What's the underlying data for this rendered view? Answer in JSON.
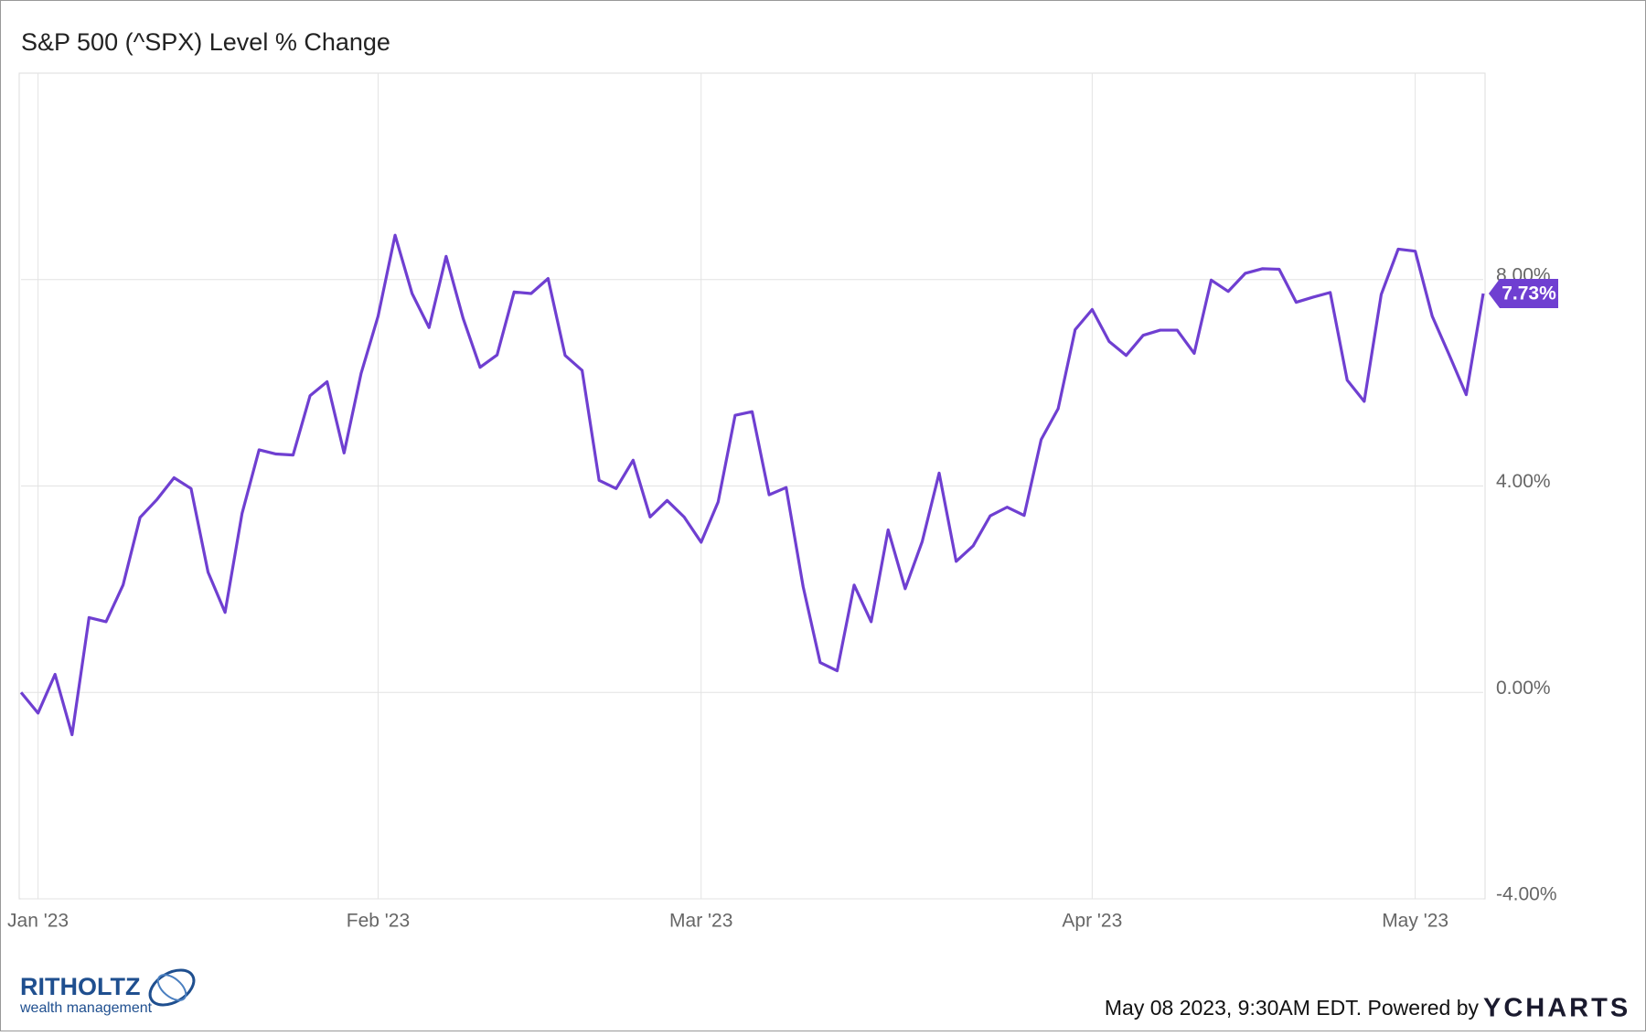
{
  "chart_data": {
    "type": "line",
    "title": "S&P 500 (^SPX) Level % Change",
    "categories": [
      null,
      "Jan '23",
      null,
      null,
      null,
      null,
      null,
      null,
      null,
      null,
      null,
      null,
      null,
      null,
      null,
      null,
      null,
      null,
      null,
      null,
      null,
      "Feb '23",
      null,
      null,
      null,
      null,
      null,
      null,
      null,
      null,
      null,
      null,
      null,
      null,
      null,
      null,
      null,
      null,
      null,
      null,
      "Mar '23",
      null,
      null,
      null,
      null,
      null,
      null,
      null,
      null,
      null,
      null,
      null,
      null,
      null,
      null,
      null,
      null,
      null,
      null,
      null,
      null,
      null,
      null,
      "Apr '23",
      null,
      null,
      null,
      null,
      null,
      null,
      null,
      null,
      null,
      null,
      null,
      null,
      null,
      null,
      null,
      null,
      null,
      null,
      "May '23",
      null,
      null,
      null,
      null
    ],
    "series": [
      {
        "name": "S&P 500 (^SPX) Level % Change",
        "color": "#6f3fd1",
        "values": [
          0,
          -0.4,
          0.35,
          -0.82,
          1.45,
          1.37,
          2.08,
          3.39,
          3.74,
          4.16,
          3.95,
          2.33,
          1.55,
          3.47,
          4.7,
          4.62,
          4.6,
          5.75,
          6.02,
          4.64,
          6.18,
          7.29,
          8.86,
          7.73,
          7.07,
          8.45,
          7.25,
          6.3,
          6.54,
          7.76,
          7.73,
          8.02,
          6.53,
          6.24,
          4.11,
          3.95,
          4.5,
          3.4,
          3.72,
          3.4,
          2.91,
          3.69,
          5.37,
          5.44,
          3.83,
          3.97,
          2.05,
          0.58,
          0.42,
          2.08,
          1.37,
          3.15,
          2.01,
          2.92,
          4.25,
          2.54,
          2.84,
          3.42,
          3.59,
          3.43,
          4.9,
          5.5,
          7.03,
          7.42,
          6.8,
          6.53,
          6.92,
          7.02,
          7.02,
          6.57,
          7.99,
          7.77,
          8.12,
          8.21,
          8.2,
          7.56,
          7.66,
          7.75,
          6.05,
          5.64,
          7.71,
          8.59,
          8.55,
          7.29,
          6.54,
          5.77,
          7.73
        ],
        "value_labels": [
          null,
          null,
          null,
          null,
          null,
          null,
          null,
          null,
          null,
          null,
          null,
          null,
          null,
          null,
          null,
          null,
          null,
          null,
          null,
          null,
          null,
          null,
          null,
          null,
          null,
          null,
          null,
          null,
          null,
          null,
          null,
          null,
          null,
          null,
          null,
          null,
          null,
          null,
          null,
          null,
          null,
          null,
          null,
          null,
          null,
          null,
          null,
          null,
          null,
          null,
          null,
          null,
          null,
          null,
          null,
          null,
          null,
          null,
          null,
          null,
          null,
          null,
          null,
          null,
          null,
          null,
          null,
          null,
          null,
          null,
          null,
          null,
          null,
          null,
          null,
          null,
          null,
          null,
          null,
          null,
          null,
          null,
          null,
          null,
          null,
          null,
          "7.73%"
        ]
      }
    ],
    "ylim": [
      -4,
      12
    ],
    "yticks": [
      {
        "value": -4,
        "label": "-4.00%"
      },
      {
        "value": 0,
        "label": "0.00%"
      },
      {
        "value": 4,
        "label": "4.00%"
      },
      {
        "value": 8,
        "label": "8.00%"
      }
    ],
    "grid": true,
    "footer": {
      "timestamp": "May 08 2023, 9:30AM EDT. Powered by",
      "brand": "YCHARTS",
      "logo_name": "RITHOLTZ",
      "logo_tagline": "wealth management"
    }
  }
}
